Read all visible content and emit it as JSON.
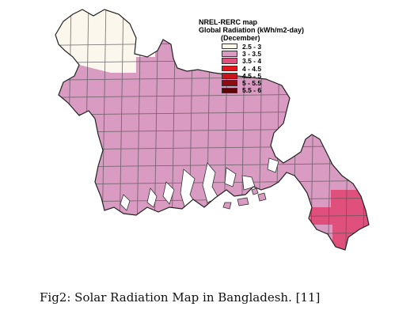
{
  "legend": {
    "title_line1": "NREL-RERC map",
    "title_line2": "Global Radiation (kWh/m2-day)",
    "title_line3": "(December)",
    "items": [
      {
        "label": "2.5 - 3",
        "color": "#fbf7ec"
      },
      {
        "label": "3 - 3.5",
        "color": "#d99bc2"
      },
      {
        "label": "3.5 - 4",
        "color": "#e0507c"
      },
      {
        "label": "4 - 4.5",
        "color": "#e4171e"
      },
      {
        "label": "4.5 - 5",
        "color": "#cc1318"
      },
      {
        "label": "5 - 5.5",
        "color": "#8e0c10"
      },
      {
        "label": "5.5 - 6",
        "color": "#5e0508"
      }
    ]
  },
  "caption": "Fig2: Solar Radiation Map in Bangladesh. [11]"
}
